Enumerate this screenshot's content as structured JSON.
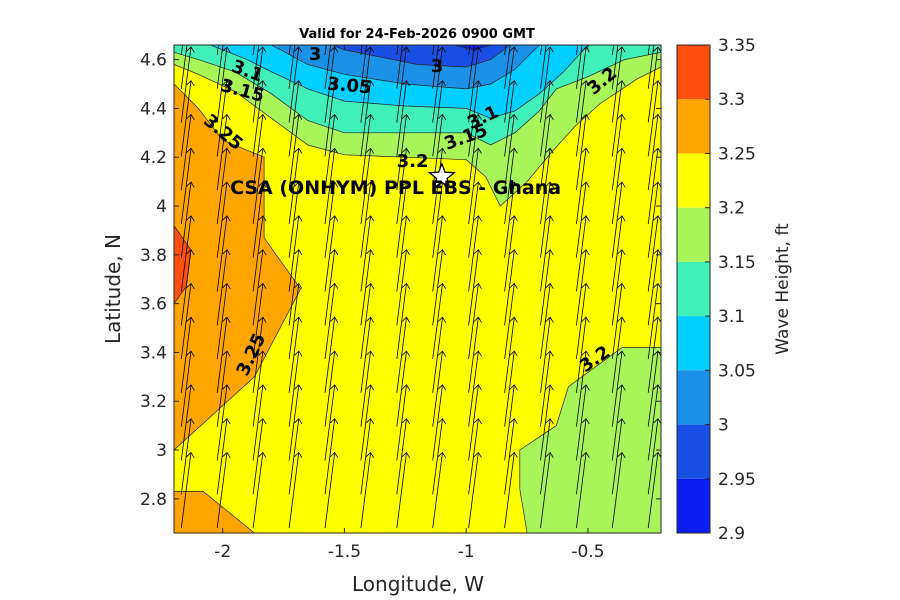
{
  "chart_data": {
    "type": "contour",
    "title": "Valid for 24-Feb-2026 0900 GMT",
    "xlabel": "Longitude, W",
    "ylabel": "Latitude, N",
    "xlim": [
      -2.2,
      -0.2
    ],
    "ylim": [
      2.66,
      4.66
    ],
    "x_ticks": [
      -2,
      -1.5,
      -1,
      -0.5
    ],
    "x_tick_labels": [
      "-2",
      "-1.5",
      "-1",
      "-0.5"
    ],
    "y_ticks": [
      2.8,
      3,
      3.2,
      3.4,
      3.6,
      3.8,
      4,
      4.2,
      4.4,
      4.6
    ],
    "y_tick_labels": [
      "2.8",
      "3",
      "3.2",
      "3.4",
      "3.6",
      "3.8",
      "4",
      "4.2",
      "4.4",
      "4.6"
    ],
    "colorbar": {
      "label": "Wave Height, ft",
      "levels": [
        2.9,
        2.95,
        3,
        3.05,
        3.1,
        3.15,
        3.2,
        3.25,
        3.3,
        3.35
      ],
      "level_labels": [
        "2.9",
        "2.95",
        "3",
        "3.05",
        "3.1",
        "3.15",
        "3.2",
        "3.25",
        "3.3",
        "3.35"
      ],
      "colors": [
        "#0a1ef2",
        "#1a4fe6",
        "#1a90e6",
        "#00cfff",
        "#3ff0b8",
        "#a8f55a",
        "#ffff00",
        "#ffa500",
        "#ff5010"
      ]
    },
    "regions": [
      {
        "level": "3.2-3.25",
        "polygon": [
          [
            -2.2,
            2.66
          ],
          [
            -0.2,
            2.66
          ],
          [
            -0.2,
            4.66
          ],
          [
            -2.2,
            4.66
          ]
        ]
      },
      {
        "level": "3.25-3.3",
        "polygon": [
          [
            -2.2,
            4.5
          ],
          [
            -2.2,
            3.0
          ],
          [
            -1.87,
            3.3
          ],
          [
            -1.68,
            3.66
          ],
          [
            -1.83,
            3.87
          ],
          [
            -1.83,
            4.2
          ],
          [
            -2.0,
            4.27
          ],
          [
            -2.1,
            4.4
          ]
        ]
      },
      {
        "level": "3.3-3.35",
        "polygon": [
          [
            -2.2,
            3.92
          ],
          [
            -2.2,
            3.6
          ],
          [
            -2.15,
            3.67
          ],
          [
            -2.13,
            3.82
          ]
        ]
      },
      {
        "level": "3.25-3.3",
        "polygon": [
          [
            -2.2,
            2.83
          ],
          [
            -2.08,
            2.83
          ],
          [
            -1.87,
            2.66
          ],
          [
            -2.2,
            2.66
          ]
        ]
      },
      {
        "level": "3.15-3.2",
        "polygon": [
          [
            -0.75,
            2.66
          ],
          [
            -0.2,
            2.66
          ],
          [
            -0.2,
            3.42
          ],
          [
            -0.36,
            3.42
          ],
          [
            -0.58,
            3.26
          ],
          [
            -0.63,
            3.1
          ],
          [
            -0.78,
            3.0
          ],
          [
            -0.78,
            2.84
          ]
        ]
      },
      {
        "level": "3.15-3.2",
        "polygon": [
          [
            -2.2,
            4.66
          ],
          [
            -0.2,
            4.66
          ],
          [
            -0.2,
            4.57
          ],
          [
            -0.3,
            4.52
          ],
          [
            -0.45,
            4.42
          ],
          [
            -0.55,
            4.33
          ],
          [
            -0.65,
            4.22
          ],
          [
            -0.75,
            4.1
          ],
          [
            -0.86,
            4.0
          ],
          [
            -0.92,
            4.12
          ],
          [
            -1.0,
            4.19
          ],
          [
            -1.25,
            4.2
          ],
          [
            -1.5,
            4.21
          ],
          [
            -1.65,
            4.25
          ],
          [
            -1.8,
            4.36
          ],
          [
            -1.95,
            4.47
          ],
          [
            -2.1,
            4.54
          ],
          [
            -2.2,
            4.58
          ]
        ]
      },
      {
        "level": "3.1-3.15",
        "polygon": [
          [
            -2.2,
            4.66
          ],
          [
            -0.2,
            4.66
          ],
          [
            -0.2,
            4.63
          ],
          [
            -0.35,
            4.6
          ],
          [
            -0.5,
            4.53
          ],
          [
            -0.63,
            4.48
          ],
          [
            -0.7,
            4.39
          ],
          [
            -0.8,
            4.3
          ],
          [
            -0.9,
            4.25
          ],
          [
            -1.0,
            4.3
          ],
          [
            -1.25,
            4.3
          ],
          [
            -1.5,
            4.3
          ],
          [
            -1.65,
            4.35
          ],
          [
            -1.8,
            4.46
          ],
          [
            -1.95,
            4.55
          ],
          [
            -2.1,
            4.6
          ],
          [
            -2.2,
            4.63
          ]
        ]
      },
      {
        "level": "3.05-3.1",
        "polygon": [
          [
            -2.05,
            4.66
          ],
          [
            -0.5,
            4.66
          ],
          [
            -0.6,
            4.55
          ],
          [
            -0.7,
            4.46
          ],
          [
            -0.8,
            4.39
          ],
          [
            -0.9,
            4.36
          ],
          [
            -1.0,
            4.4
          ],
          [
            -1.25,
            4.41
          ],
          [
            -1.5,
            4.43
          ],
          [
            -1.65,
            4.48
          ],
          [
            -1.8,
            4.55
          ],
          [
            -1.9,
            4.6
          ]
        ]
      },
      {
        "level": "3-3.05",
        "polygon": [
          [
            -1.8,
            4.66
          ],
          [
            -0.7,
            4.66
          ],
          [
            -0.8,
            4.56
          ],
          [
            -0.9,
            4.5
          ],
          [
            -1.0,
            4.48
          ],
          [
            -1.25,
            4.5
          ],
          [
            -1.5,
            4.54
          ],
          [
            -1.65,
            4.58
          ]
        ]
      },
      {
        "level": "2.95-3",
        "polygon": [
          [
            -1.55,
            4.66
          ],
          [
            -0.82,
            4.66
          ],
          [
            -0.9,
            4.6
          ],
          [
            -1.0,
            4.57
          ],
          [
            -1.2,
            4.58
          ],
          [
            -1.35,
            4.61
          ],
          [
            -1.5,
            4.64
          ]
        ]
      },
      {
        "level": "2.9-2.95",
        "polygon": [
          [
            -1.05,
            4.66
          ],
          [
            -0.9,
            4.66
          ],
          [
            -0.97,
            4.64
          ]
        ]
      }
    ],
    "contour_labels": [
      {
        "text": "3.1",
        "x": -1.9,
        "y": 4.55,
        "angle": 20
      },
      {
        "text": "3.15",
        "x": -1.92,
        "y": 4.47,
        "angle": 15
      },
      {
        "text": "3",
        "x": -1.62,
        "y": 4.62,
        "angle": 0
      },
      {
        "text": "3.05",
        "x": -1.48,
        "y": 4.49,
        "angle": 5
      },
      {
        "text": "3",
        "x": -1.12,
        "y": 4.57,
        "angle": 0
      },
      {
        "text": "3.1",
        "x": -0.93,
        "y": 4.36,
        "angle": -25
      },
      {
        "text": "3.15",
        "x": -1.0,
        "y": 4.28,
        "angle": -20
      },
      {
        "text": "3.25",
        "x": -2.0,
        "y": 4.3,
        "angle": 40
      },
      {
        "text": "3.2",
        "x": -1.22,
        "y": 4.18,
        "angle": 0
      },
      {
        "text": "3.2",
        "x": -0.44,
        "y": 4.51,
        "angle": -40
      },
      {
        "text": "3.25",
        "x": -1.88,
        "y": 3.39,
        "angle": -65
      },
      {
        "text": "3.2",
        "x": -0.47,
        "y": 3.37,
        "angle": -35
      }
    ],
    "vector_field": {
      "x_start": -2.17,
      "x_step": 0.1475,
      "x_count": 14,
      "y_start": 2.68,
      "y_step": 0.1385,
      "y_count": 15,
      "u": 0.04,
      "v": 0.31
    },
    "marker": {
      "symbol": "star",
      "x": -1.1,
      "y": 4.12
    },
    "annotation": {
      "text": "CSA (ONHYM) PPL EBS  - Ghana",
      "x": -1.29,
      "y": 4.05
    }
  }
}
